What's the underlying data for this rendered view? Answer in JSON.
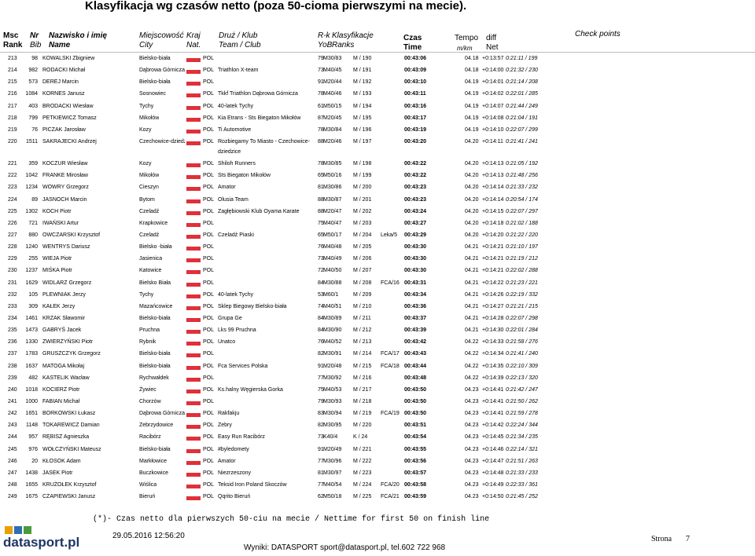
{
  "header": {
    "title": "Klasyfikacja wg czasów netto (poza 50-cioma pierwszymi na mecie).",
    "row1": [
      "Msc",
      "Nr",
      "Nazwisko i imię",
      "Miejscowość",
      "Kraj",
      "Druż / Klub",
      "R-k",
      "Klasyfikacje",
      "Czas",
      "Tempo",
      "diff",
      "Check points"
    ],
    "row2": [
      "Rank",
      "Bib",
      "Name",
      "City",
      "Nat.",
      "Team / Club",
      "YoB",
      "Ranks",
      "Time",
      "m/km",
      "Net"
    ]
  },
  "table": {
    "rows": [
      [
        "213",
        "98",
        "KOWALSKI Zbigniew",
        "Bielsko-biała",
        "POL",
        null,
        "79",
        "M30/83",
        "M / 190",
        null,
        "00:43:06",
        "04.18",
        "+0:13:57",
        "0:21:11 / 199"
      ],
      [
        "214",
        "982",
        "RODACKI Michał",
        "Dąbrowa Górnicza",
        "POL",
        "Triathlon X-team",
        "73",
        "M40/45",
        "M / 191",
        null,
        "00:43:09",
        "04.18",
        "+0:14:00",
        "0:21:32 / 230"
      ],
      [
        "215",
        "573",
        "DEREJ Marcin",
        "Bielsko-biała",
        "POL",
        null,
        "91",
        "M20/44",
        "M / 192",
        null,
        "00:43:10",
        "04.19",
        "+0:14:01",
        "0:21:14 / 208"
      ],
      [
        "216",
        "1084",
        "KORNES Janusz",
        "Sosnowiec",
        "POL",
        "Tkkf Triathlon Dąbrowa Górnicza",
        "78",
        "M40/46",
        "M / 193",
        null,
        "00:43:11",
        "04.19",
        "+0:14:02",
        "0:22:01 / 285"
      ],
      [
        "217",
        "403",
        "BRODACKI Wiesław",
        "Tychy",
        "POL",
        "40-latek Tychy",
        "61",
        "M50/15",
        "M / 194",
        null,
        "00:43:16",
        "04.19",
        "+0:14:07",
        "0:21:44 / 249"
      ],
      [
        "218",
        "799",
        "PETKIEWICZ Tomasz",
        "Mikołów",
        "POL",
        "Kia Etrans - Sts Biegaton Mikołów",
        "87",
        "M20/45",
        "M / 195",
        null,
        "00:43:17",
        "04.19",
        "+0:14:08",
        "0:21:04 / 191"
      ],
      [
        "219",
        "76",
        "PICZAK Jarosław",
        "Kozy",
        "POL",
        "Ti Automotive",
        "78",
        "M30/84",
        "M / 196",
        null,
        "00:43:19",
        "04.19",
        "+0:14:10",
        "0:22:07 / 299"
      ],
      [
        "220",
        "1511",
        "SAKRAJECKI Andrzej",
        "Czechowice-dziedz",
        "POL",
        "Rozbiegamy To Miasto - Czechowice-dziedzice",
        "88",
        "M20/46",
        "M / 197",
        null,
        "00:43:20",
        "04.20",
        "+0:14:11",
        "0:21:41 / 241"
      ],
      [
        "221",
        "359",
        "KOCZUR Wiesław",
        "Kozy",
        "POL",
        "Shiloh Runners",
        "78",
        "M30/85",
        "M / 198",
        null,
        "00:43:22",
        "04.20",
        "+0:14:13",
        "0:21:05 / 192"
      ],
      [
        "222",
        "1042",
        "FRANKE Mirosław",
        "Mikołów",
        "POL",
        "Sts Biegaton Mikołów",
        "65",
        "M50/16",
        "M / 199",
        null,
        "00:43:22",
        "04.20",
        "+0:14:13",
        "0:21:48 / 256"
      ],
      [
        "223",
        "1234",
        "WOWRY Grzegorz",
        "Cieszyn",
        "POL",
        "Amator",
        "81",
        "M30/86",
        "M / 200",
        null,
        "00:43:23",
        "04.20",
        "+0:14:14",
        "0:21:33 / 232"
      ],
      [
        "224",
        "89",
        "JASNOCH Marcin",
        "Bytom",
        "POL",
        "Olusia Team",
        "88",
        "M30/87",
        "M / 201",
        null,
        "00:43:23",
        "04.20",
        "+0:14:14",
        "0:20:54 / 174"
      ],
      [
        "225",
        "1302",
        "KOCH Piotr",
        "Czeladź",
        "POL",
        "Zagłębiowski Klub Oyama Karate",
        "88",
        "M20/47",
        "M / 202",
        null,
        "00:43:24",
        "04.20",
        "+0:14:15",
        "0:22:07 / 297"
      ],
      [
        "226",
        "721",
        "IWAŃSKI Artur",
        "Krapkowice",
        "POL",
        null,
        "75",
        "M40/47",
        "M / 203",
        null,
        "00:43:27",
        "04.20",
        "+0:14:18",
        "0:21:02 / 188"
      ],
      [
        "227",
        "880",
        "OWCZARSKI Krzysztof",
        "Czeladź",
        "POL",
        "Czeladź Piaski",
        "65",
        "M50/17",
        "M / 204",
        "Leka/5",
        "00:43:29",
        "04.20",
        "+0:14:20",
        "0:21:22 / 220"
      ],
      [
        "228",
        "1240",
        "WENTRYS Dariusz",
        "Bielsko -biała",
        "POL",
        null,
        "76",
        "M40/48",
        "M / 205",
        null,
        "00:43:30",
        "04.21",
        "+0:14:21",
        "0:21:10 / 197"
      ],
      [
        "229",
        "255",
        "WIEJA Piotr",
        "Jasienica",
        "POL",
        null,
        "73",
        "M40/49",
        "M / 206",
        null,
        "00:43:30",
        "04.21",
        "+0:14:21",
        "0:21:19 / 212"
      ],
      [
        "230",
        "1237",
        "MIŚKA Piotr",
        "Katowice",
        "POL",
        null,
        "72",
        "M40/50",
        "M / 207",
        null,
        "00:43:30",
        "04.21",
        "+0:14:21",
        "0:22:02 / 288"
      ],
      [
        "231",
        "1629",
        "WIDLARZ Grzegorz",
        "Bielsko Biała",
        "POL",
        null,
        "84",
        "M30/88",
        "M / 208",
        "FCA/16",
        "00:43:31",
        "04.21",
        "+0:14:22",
        "0:21:23 / 221"
      ],
      [
        "232",
        "105",
        "PLEWNIAK Jerzy",
        "Tychy",
        "POL",
        "40-latek Tychy",
        "53",
        "M60/1",
        "M / 209",
        null,
        "00:43:34",
        "04.21",
        "+0:14:26",
        "0:22:19 / 332"
      ],
      [
        "233",
        "309",
        "KAŁEK Jerzy",
        "Mazańcowice",
        "POL",
        "Sklep Biegowy Bielsko-biała",
        "74",
        "M40/51",
        "M / 210",
        null,
        "00:43:36",
        "04.21",
        "+0:14:27",
        "0:21:21 / 215"
      ],
      [
        "234",
        "1461",
        "KRZAK Sławomir",
        "Bielsko-biała",
        "POL",
        "Grupa Ge",
        "84",
        "M30/89",
        "M / 211",
        null,
        "00:43:37",
        "04.21",
        "+0:14:28",
        "0:22:07 / 298"
      ],
      [
        "235",
        "1473",
        "GABRYŚ Jacek",
        "Pruchna",
        "POL",
        "Lks 99 Pruchna",
        "84",
        "M30/90",
        "M / 212",
        null,
        "00:43:39",
        "04.21",
        "+0:14:30",
        "0:22:01 / 284"
      ],
      [
        "236",
        "1330",
        "ZWIERZYŃSKI Piotr",
        "Rybnik",
        "POL",
        "Unatco",
        "76",
        "M40/52",
        "M / 213",
        null,
        "00:43:42",
        "04.22",
        "+0:14:33",
        "0:21:58 / 276"
      ],
      [
        "237",
        "1783",
        "GRUSZCZYK Grzegorz",
        "Bielsko-biała",
        "POL",
        null,
        "82",
        "M30/91",
        "M / 214",
        "FCA/17",
        "00:43:43",
        "04.22",
        "+0:14:34",
        "0:21:41 / 240"
      ],
      [
        "238",
        "1637",
        "MATOGA Mikołaj",
        "Bielsko-biała",
        "POL",
        "Fca Services Polska",
        "91",
        "M20/48",
        "M / 215",
        "FCA/18",
        "00:43:44",
        "04.22",
        "+0:14:35",
        "0:22:10 / 309"
      ],
      [
        "239",
        "482",
        "KASTELIK Wacław",
        "Rychwałdek",
        "POL",
        null,
        "77",
        "M30/92",
        "M / 216",
        null,
        "00:43:48",
        "04.22",
        "+0:14:39",
        "0:22:13 / 320"
      ],
      [
        "240",
        "1018",
        "KOCIERZ Piotr",
        "Żywiec",
        "POL",
        "Ks.halny Węgierska Gorka",
        "75",
        "M40/53",
        "M / 217",
        null,
        "00:43:50",
        "04.23",
        "+0:14:41",
        "0:21:42 / 247"
      ],
      [
        "241",
        "1000",
        "FABIAN Michał",
        "Chorzów",
        "POL",
        null,
        "79",
        "M30/93",
        "M / 218",
        null,
        "00:43:50",
        "04.23",
        "+0:14:41",
        "0:21:50 / 262"
      ],
      [
        "242",
        "1651",
        "BORKOWSKI Łukasz",
        "Dąbrowa Górnicza",
        "POL",
        "Rakfakju",
        "83",
        "M30/94",
        "M / 219",
        "FCA/19",
        "00:43:50",
        "04.23",
        "+0:14:41",
        "0:21:59 / 278"
      ],
      [
        "243",
        "1148",
        "TOKAREWICZ Damian",
        "Zebrzydowice",
        "POL",
        "Zebry",
        "82",
        "M30/95",
        "M / 220",
        null,
        "00:43:51",
        "04.23",
        "+0:14:42",
        "0:22:24 / 344"
      ],
      [
        "244",
        "957",
        "RĘBISZ Agnieszka",
        "Racibórz",
        "POL",
        "Easy Run Racibórz",
        "73",
        "K40/4",
        "K / 24",
        null,
        "00:43:54",
        "04.23",
        "+0:14:45",
        "0:21:34 / 235"
      ],
      [
        "245",
        "976",
        "WOŁCZYŃSKI Mateusz",
        "Bielsko-biała",
        "POL",
        "#byledomety",
        "91",
        "M20/49",
        "M / 221",
        null,
        "00:43:55",
        "04.23",
        "+0:14:46",
        "0:22:14 / 321"
      ],
      [
        "246",
        "20",
        "KŁOSOK Adam",
        "Markłowice",
        "POL",
        "Amator",
        "77",
        "M30/96",
        "M / 222",
        null,
        "00:43:56",
        "04.23",
        "+0:14:47",
        "0:21:51 / 263"
      ],
      [
        "247",
        "1438",
        "JASEK Piotr",
        "Buczkowice",
        "POL",
        "Niezrzeszony",
        "81",
        "M30/97",
        "M / 223",
        null,
        "00:43:57",
        "04.23",
        "+0:14:48",
        "0:21:33 / 233"
      ],
      [
        "248",
        "1655",
        "KRUŻOŁEK Krzysztof",
        "Wiślica",
        "POL",
        "Teksid Iron Poland Skoczów",
        "77",
        "M40/54",
        "M / 224",
        "FCA/20",
        "00:43:58",
        "04.23",
        "+0:14:49",
        "0:22:33 / 361"
      ],
      [
        "249",
        "1675",
        "CZAPIEWSKI Janusz",
        "Bieruń",
        "POL",
        "Qqrito Bieruń",
        "62",
        "M50/18",
        "M / 225",
        "FCA/21",
        "00:43:59",
        "04.23",
        "+0:14:50",
        "0:21:45 / 252"
      ]
    ]
  },
  "footer": {
    "note": "(*)- Czas netto dla pierwszych 50-ciu na mecie / Nettime for first 50 on finish line",
    "logo": "datasport.pl",
    "date": "29.05.2016 12:56:20",
    "contact": "Wyniki: DATASPORT sport@datasport.pl, tel.602 722 968",
    "page_label": "Strona",
    "page": "7"
  }
}
